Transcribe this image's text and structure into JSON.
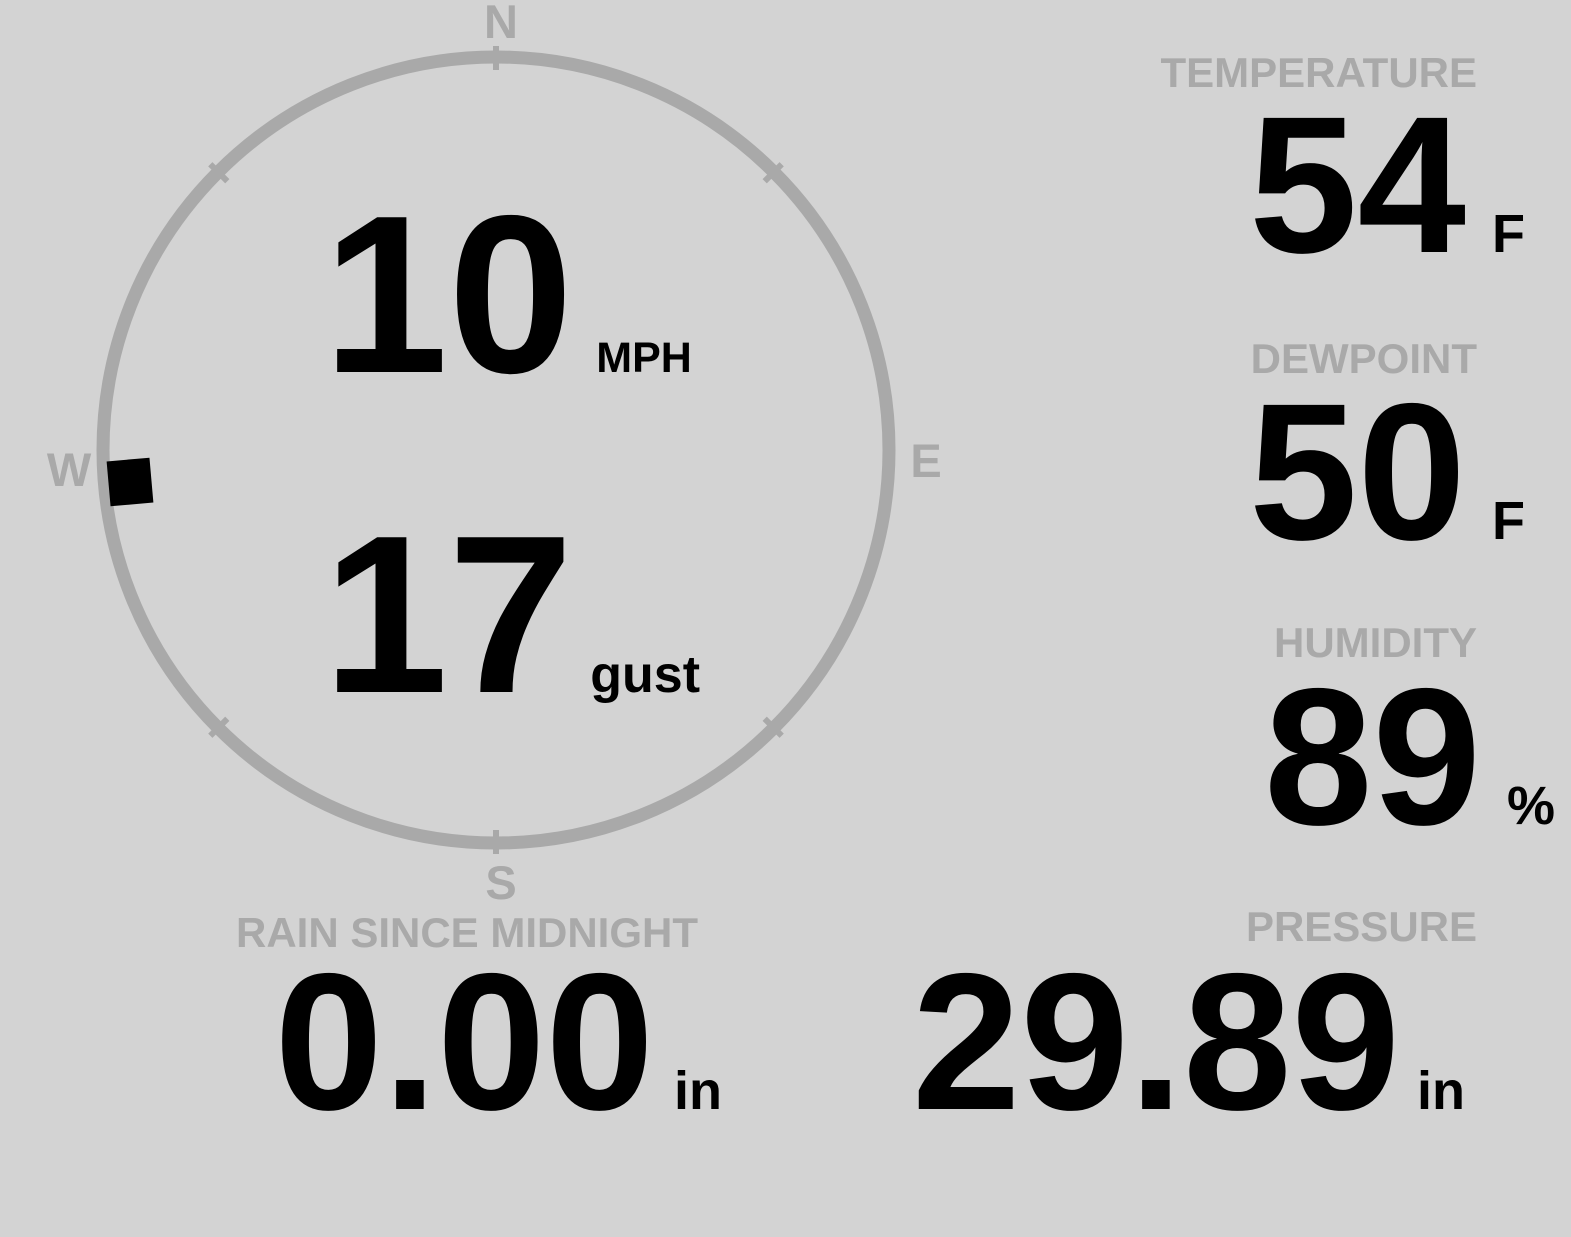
{
  "display": {
    "background_color": "#d3d3d3",
    "muted_color": "#a9a9a9",
    "text_color": "#000000"
  },
  "wind": {
    "speed": "10",
    "speed_unit": "MPH",
    "gust": "17",
    "gust_unit": "gust",
    "direction_deg": 265,
    "compass": {
      "north": "N",
      "east": "E",
      "south": "S",
      "west": "W"
    }
  },
  "metrics": {
    "temperature": {
      "label": "TEMPERATURE",
      "value": "54",
      "unit": "F"
    },
    "dewpoint": {
      "label": "DEWPOINT",
      "value": "50",
      "unit": "F"
    },
    "humidity": {
      "label": "HUMIDITY",
      "value": "89",
      "unit": "%"
    },
    "pressure": {
      "label": "PRESSURE",
      "value": "29.89",
      "unit": "in"
    },
    "rain": {
      "label": "RAIN SINCE MIDNIGHT",
      "value": "0.00",
      "unit": "in"
    }
  }
}
